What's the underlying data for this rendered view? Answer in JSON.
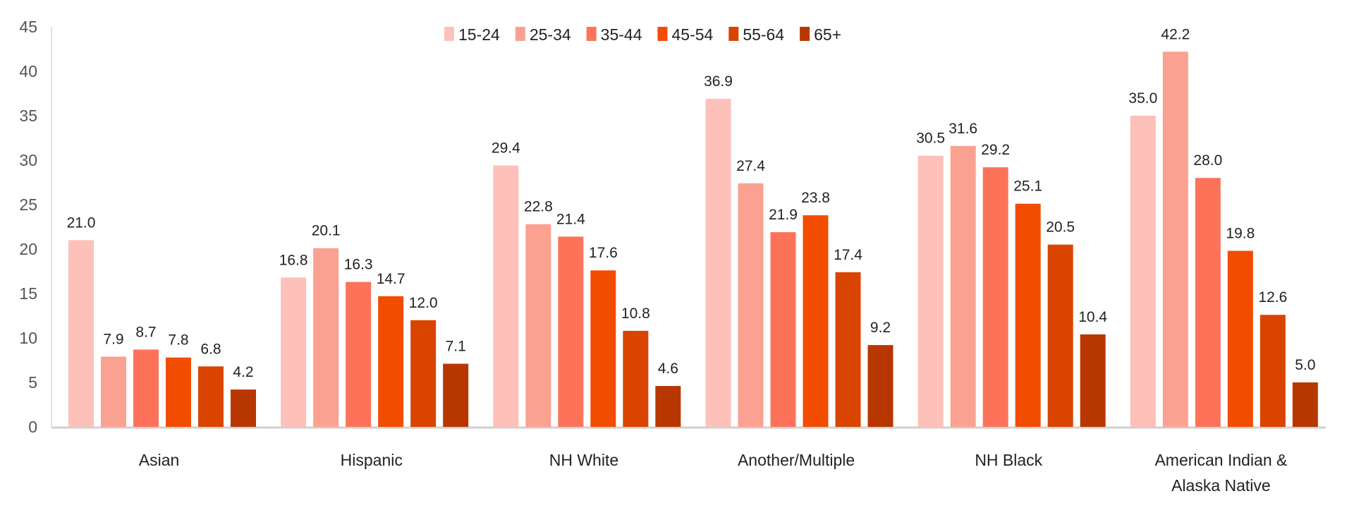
{
  "chart_data": {
    "type": "bar",
    "categories": [
      "Asian",
      "Hispanic",
      "NH White",
      "Another/Multiple",
      "NH Black",
      "American Indian & Alaska Native"
    ],
    "category_lines": [
      [
        "Asian"
      ],
      [
        "Hispanic"
      ],
      [
        "NH White"
      ],
      [
        "Another/Multiple"
      ],
      [
        "NH Black"
      ],
      [
        "American Indian &",
        "Alaska Native"
      ]
    ],
    "series": [
      {
        "name": "15-24",
        "color": "#FDC1B9",
        "values": [
          21.0,
          16.8,
          29.4,
          36.9,
          30.5,
          35.0
        ]
      },
      {
        "name": "25-34",
        "color": "#FBA191",
        "values": [
          7.9,
          20.1,
          22.8,
          27.4,
          31.6,
          42.2
        ]
      },
      {
        "name": "35-44",
        "color": "#FC735A",
        "values": [
          8.7,
          16.3,
          21.4,
          21.9,
          29.2,
          28.0
        ]
      },
      {
        "name": "45-54",
        "color": "#F24C00",
        "values": [
          7.8,
          14.7,
          17.6,
          23.8,
          25.1,
          19.8
        ]
      },
      {
        "name": "55-64",
        "color": "#D94400",
        "values": [
          6.8,
          12.0,
          10.8,
          17.4,
          20.5,
          12.6
        ]
      },
      {
        "name": "65+",
        "color": "#B83700",
        "values": [
          4.2,
          7.1,
          4.6,
          9.2,
          10.4,
          5.0
        ]
      }
    ],
    "title": "",
    "xlabel": "",
    "ylabel": "",
    "ylim": [
      0,
      45
    ],
    "yticks": [
      "0",
      "5",
      "10",
      "15",
      "20",
      "25",
      "30",
      "35",
      "40",
      "45"
    ],
    "grid": false,
    "legend": "top-center",
    "data_labels": true
  }
}
